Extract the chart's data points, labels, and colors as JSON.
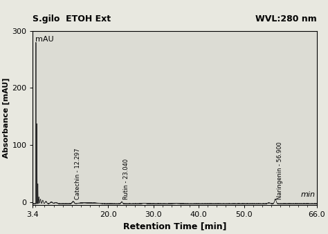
{
  "title": "S.gilo  ETOH Ext",
  "wvl_label": "WVL:280 nm",
  "ylabel": "Absorbance [mAU]",
  "xlabel": "Retention Time [min]",
  "mau_label": "mAU",
  "min_label": "min",
  "xlim": [
    3.4,
    66.0
  ],
  "ylim": [
    -5,
    300
  ],
  "yticks": [
    0,
    100,
    200,
    300
  ],
  "xtick_positions": [
    3.4,
    20.0,
    30.0,
    40.0,
    50.0,
    66.0
  ],
  "xtick_labels": [
    "3.4",
    "20.0",
    "30.0",
    "40.0",
    "50.0",
    "66.0"
  ],
  "peak_labels": [
    {
      "text": "Catechin - 12.297",
      "x": 12.297,
      "y_data": 2
    },
    {
      "text": "Rutin - 23.040",
      "x": 23.04,
      "y_data": 2
    },
    {
      "text": "Naringenin - 56.900",
      "x": 56.9,
      "y_data": 2
    }
  ],
  "line_color": "#2a2a2a",
  "background_color": "#e8e8e0",
  "plot_bg_color": "#dcdcd4",
  "title_fontsize": 9,
  "axis_label_fontsize": 9,
  "tick_fontsize": 8,
  "peak_label_fontsize": 6,
  "mau_fontsize": 8,
  "min_fontsize": 8
}
